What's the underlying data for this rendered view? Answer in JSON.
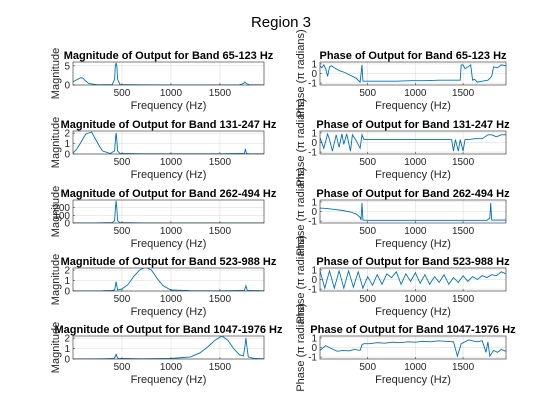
{
  "figure": {
    "suptitle": "Region 3",
    "background": "#ffffff",
    "series_color": "#0072bd",
    "grid_color": "#d9d9d9",
    "axis_color": "#262626"
  },
  "chart_data": [
    {
      "type": "line",
      "band": "65-123 Hz",
      "kind": "magnitude",
      "title": "Magnitude of Output for Band 65-123 Hz",
      "xlabel": "Frequency (Hz)",
      "ylabel": "Magnitude",
      "xlim": [
        0,
        1950
      ],
      "ylim": [
        0,
        6
      ],
      "xticks": [
        500,
        1000,
        1500
      ],
      "xticklabels": [
        "500",
        "1000",
        "1500"
      ],
      "yticks": [
        0,
        5
      ],
      "yticklabels": [
        "0",
        "5"
      ],
      "grid": true,
      "x": [
        0,
        40,
        80,
        100,
        123,
        160,
        250,
        400,
        425,
        432,
        440,
        448,
        455,
        480,
        700,
        1000,
        1300,
        1700,
        1740,
        1755,
        1770,
        1800,
        1950
      ],
      "y": [
        0.8,
        1.4,
        1.9,
        1.8,
        1.2,
        0.4,
        0.05,
        0.1,
        1.5,
        4.8,
        5.8,
        4.8,
        1.5,
        0.1,
        0.05,
        0.02,
        0.02,
        0.05,
        0.4,
        0.8,
        0.4,
        0.05,
        0.02
      ]
    },
    {
      "type": "line",
      "band": "65-123 Hz",
      "kind": "phase",
      "title": "Phase of Output for Band 65-123 Hz",
      "xlabel": "Frequency (Hz)",
      "ylabel": "Phase (π radians)",
      "xlim": [
        0,
        1950
      ],
      "ylim": [
        -1.2,
        1.2
      ],
      "xticks": [
        500,
        1000,
        1500
      ],
      "xticklabels": [
        "500",
        "1000",
        "1500"
      ],
      "yticks": [
        -1,
        0,
        1
      ],
      "yticklabels": [
        "-1",
        "0",
        "1"
      ],
      "grid": true,
      "x": [
        0,
        20,
        40,
        60,
        80,
        100,
        120,
        150,
        200,
        260,
        320,
        380,
        420,
        440,
        450,
        500,
        650,
        800,
        950,
        1100,
        1250,
        1400,
        1470,
        1480,
        1500,
        1520,
        1580,
        1600,
        1620,
        1650,
        1700,
        1760,
        1800,
        1820,
        1860,
        1900,
        1950
      ],
      "y": [
        0.8,
        0.6,
        0.9,
        0.5,
        -0.3,
        0.7,
        0.8,
        0.6,
        0.3,
        0.1,
        -0.2,
        -0.5,
        -0.9,
        0.9,
        -0.8,
        -0.8,
        -0.8,
        -0.8,
        -0.75,
        -0.75,
        -0.7,
        -0.7,
        -0.7,
        0.9,
        0.9,
        0.5,
        0.9,
        -0.7,
        -0.6,
        -0.9,
        -0.8,
        -0.7,
        -0.3,
        0.7,
        0.6,
        0.9,
        0.8
      ]
    },
    {
      "type": "line",
      "band": "131-247 Hz",
      "kind": "magnitude",
      "title": "Magnitude of Output for Band 131-247 Hz",
      "xlabel": "Frequency (Hz)",
      "ylabel": "Magnitude",
      "xlim": [
        0,
        1950
      ],
      "ylim": [
        0,
        2.2
      ],
      "xticks": [
        500,
        1000,
        1500
      ],
      "xticklabels": [
        "500",
        "1000",
        "1500"
      ],
      "yticks": [
        0,
        1,
        2
      ],
      "yticklabels": [
        "0",
        "1",
        "2"
      ],
      "grid": true,
      "x": [
        0,
        40,
        80,
        130,
        190,
        220,
        260,
        300,
        380,
        425,
        435,
        440,
        445,
        455,
        480,
        700,
        1000,
        1500,
        1750,
        1760,
        1770,
        1800,
        1950
      ],
      "y": [
        0.1,
        0.5,
        1.1,
        1.9,
        2.1,
        1.6,
        0.9,
        0.3,
        0.05,
        0.3,
        1.6,
        2.0,
        1.6,
        0.3,
        0.05,
        0.02,
        0.02,
        0.02,
        0.05,
        0.5,
        0.05,
        0.02,
        0.02
      ]
    },
    {
      "type": "line",
      "band": "131-247 Hz",
      "kind": "phase",
      "title": "Phase of Output for Band 131-247 Hz",
      "xlabel": "Frequency (Hz)",
      "ylabel": "Phase (π radians)",
      "xlim": [
        0,
        1950
      ],
      "ylim": [
        -1.2,
        1.2
      ],
      "xticks": [
        500,
        1000,
        1500
      ],
      "xticklabels": [
        "500",
        "1000",
        "1500"
      ],
      "yticks": [
        -1,
        0,
        1
      ],
      "yticklabels": [
        "-1",
        "0",
        "1"
      ],
      "grid": true,
      "x": [
        0,
        40,
        80,
        100,
        130,
        170,
        200,
        230,
        250,
        280,
        320,
        340,
        380,
        420,
        440,
        460,
        600,
        800,
        1000,
        1200,
        1380,
        1400,
        1420,
        1450,
        1470,
        1500,
        1520,
        1560,
        1620,
        1700,
        1760,
        1800,
        1850,
        1900,
        1950
      ],
      "y": [
        0.5,
        -0.6,
        0.9,
        0.3,
        -0.9,
        0.8,
        -0.5,
        0.9,
        -0.2,
        0.9,
        -0.9,
        0.8,
        0.2,
        -0.6,
        0.8,
        0.3,
        0.3,
        0.3,
        0.3,
        0.3,
        0.3,
        -0.9,
        0.3,
        -0.9,
        0.3,
        -0.9,
        0.3,
        0.3,
        0.4,
        0.4,
        0.8,
        0.8,
        0.6,
        0.8,
        0.8
      ]
    },
    {
      "type": "line",
      "band": "262-494 Hz",
      "kind": "magnitude",
      "title": "Magnitude of Output for Band 262-494 Hz",
      "xlabel": "Frequency (Hz)",
      "ylabel": "Magnitude",
      "xlim": [
        0,
        1950
      ],
      "ylim": [
        0,
        300
      ],
      "xticks": [
        500,
        1000,
        1500
      ],
      "xticklabels": [
        "500",
        "1000",
        "1500"
      ],
      "yticks": [
        0,
        100,
        200
      ],
      "yticklabels": [
        "0",
        "100",
        "200"
      ],
      "grid": true,
      "x": [
        0,
        200,
        300,
        400,
        425,
        432,
        440,
        448,
        455,
        480,
        700,
        1000,
        1500,
        1950
      ],
      "y": [
        0,
        0,
        2,
        5,
        30,
        180,
        290,
        180,
        30,
        5,
        1,
        0,
        0,
        0
      ]
    },
    {
      "type": "line",
      "band": "262-494 Hz",
      "kind": "phase",
      "title": "Phase of Output for Band 262-494 Hz",
      "xlabel": "Frequency (Hz)",
      "ylabel": "Phase (π radians)",
      "xlim": [
        0,
        1950
      ],
      "ylim": [
        -1.2,
        1.2
      ],
      "xticks": [
        500,
        1000,
        1500
      ],
      "xticklabels": [
        "500",
        "1000",
        "1500"
      ],
      "yticks": [
        -1,
        0,
        1
      ],
      "yticklabels": [
        "-1",
        "0",
        "1"
      ],
      "grid": true,
      "x": [
        0,
        80,
        160,
        240,
        320,
        380,
        420,
        430,
        440,
        450,
        500,
        700,
        1000,
        1300,
        1600,
        1750,
        1780,
        1790,
        1800,
        1850,
        1950
      ],
      "y": [
        0.35,
        0.3,
        0.2,
        0.1,
        -0.05,
        -0.25,
        -0.6,
        -0.9,
        0.9,
        -0.9,
        -0.92,
        -0.92,
        -0.92,
        -0.92,
        -0.92,
        -0.92,
        -0.7,
        0.9,
        -0.9,
        -0.9,
        -0.9
      ]
    },
    {
      "type": "line",
      "band": "523-988 Hz",
      "kind": "magnitude",
      "title": "Magnitude of Output for Band 523-988 Hz",
      "xlabel": "Frequency (Hz)",
      "ylabel": "Magnitude",
      "xlim": [
        0,
        1950
      ],
      "ylim": [
        0,
        2.2
      ],
      "xticks": [
        500,
        1000,
        1500
      ],
      "xticklabels": [
        "500",
        "1000",
        "1500"
      ],
      "yticks": [
        0,
        1,
        2
      ],
      "yticklabels": [
        "0",
        "1",
        "2"
      ],
      "grid": true,
      "x": [
        0,
        300,
        400,
        425,
        435,
        440,
        445,
        455,
        500,
        560,
        620,
        680,
        740,
        800,
        860,
        920,
        1000,
        1200,
        1500,
        1750,
        1765,
        1780,
        1950
      ],
      "y": [
        0,
        0.02,
        0.05,
        0.1,
        0.6,
        0.9,
        0.6,
        0.1,
        0.2,
        0.6,
        1.4,
        2.0,
        2.3,
        2.0,
        1.2,
        0.5,
        0.1,
        0.03,
        0.02,
        0.05,
        0.5,
        0.05,
        0.02
      ]
    },
    {
      "type": "line",
      "band": "523-988 Hz",
      "kind": "phase",
      "title": "Phase of Output for Band 523-988 Hz",
      "xlabel": "Frequency (Hz)",
      "ylabel": "Phase (π radians)",
      "xlim": [
        0,
        1950
      ],
      "ylim": [
        -1.2,
        1.2
      ],
      "xticks": [
        500,
        1000,
        1500
      ],
      "xticklabels": [
        "500",
        "1000",
        "1500"
      ],
      "yticks": [
        -1,
        0,
        1
      ],
      "yticklabels": [
        "-1",
        "0",
        "1"
      ],
      "grid": true,
      "x": [
        0,
        50,
        100,
        150,
        200,
        250,
        300,
        350,
        400,
        450,
        500,
        550,
        600,
        650,
        700,
        750,
        800,
        850,
        900,
        950,
        1000,
        1050,
        1100,
        1150,
        1200,
        1250,
        1300,
        1350,
        1400,
        1450,
        1500,
        1550,
        1600,
        1650,
        1700,
        1750,
        1800,
        1850,
        1900,
        1950
      ],
      "y": [
        0.9,
        -0.9,
        0.9,
        -0.9,
        0.9,
        -0.9,
        0.9,
        -0.8,
        0.8,
        -0.9,
        0.3,
        -0.6,
        0.5,
        -0.5,
        0.6,
        0.2,
        0.8,
        -0.5,
        0.6,
        -0.2,
        0.7,
        -0.4,
        0.5,
        -0.5,
        0.3,
        -0.3,
        0.5,
        -0.5,
        0.2,
        -0.3,
        0.4,
        -0.2,
        0.3,
        0.0,
        0.4,
        0.2,
        0.5,
        0.4,
        0.8,
        0.6
      ]
    },
    {
      "type": "line",
      "band": "1047-1976 Hz",
      "kind": "magnitude",
      "title": "Magnitude of Output for Band 1047-1976 Hz",
      "xlabel": "Frequency (Hz)",
      "ylabel": "Magnitude",
      "xlim": [
        0,
        1950
      ],
      "ylim": [
        0,
        2.2
      ],
      "xticks": [
        500,
        1000,
        1500
      ],
      "xticklabels": [
        "500",
        "1000",
        "1500"
      ],
      "yticks": [
        0,
        1,
        2
      ],
      "yticklabels": [
        "0",
        "1",
        "2"
      ],
      "grid": true,
      "x": [
        0,
        300,
        420,
        435,
        440,
        445,
        460,
        700,
        1000,
        1200,
        1300,
        1380,
        1450,
        1520,
        1580,
        1640,
        1700,
        1740,
        1755,
        1765,
        1775,
        1790,
        1850,
        1950
      ],
      "y": [
        0,
        0.02,
        0.05,
        0.3,
        0.5,
        0.3,
        0.05,
        0.02,
        0.05,
        0.2,
        0.6,
        1.2,
        1.8,
        2.2,
        1.8,
        1.0,
        0.4,
        0.3,
        1.2,
        2.0,
        1.2,
        0.2,
        0.05,
        0.02
      ]
    },
    {
      "type": "line",
      "band": "1047-1976 Hz",
      "kind": "phase",
      "title": "Phase of Output for Band 1047-1976 Hz",
      "xlabel": "Frequency (Hz)",
      "ylabel": "Phase (π radians)",
      "xlim": [
        0,
        1950
      ],
      "ylim": [
        -1.2,
        1.2
      ],
      "xticks": [
        500,
        1000,
        1500
      ],
      "xticklabels": [
        "500",
        "1000",
        "1500"
      ],
      "yticks": [
        -1,
        0,
        1
      ],
      "yticklabels": [
        "-1",
        "0",
        "1"
      ],
      "grid": true,
      "x": [
        0,
        60,
        120,
        180,
        240,
        300,
        360,
        420,
        440,
        460,
        520,
        600,
        680,
        760,
        840,
        920,
        1000,
        1080,
        1160,
        1240,
        1320,
        1400,
        1440,
        1480,
        1560,
        1640,
        1700,
        1740,
        1760,
        1780,
        1820,
        1860,
        1900,
        1950
      ],
      "y": [
        -0.3,
        0.2,
        -0.1,
        -0.4,
        -0.3,
        -0.35,
        -0.2,
        -0.3,
        0.3,
        0.4,
        0.4,
        0.5,
        0.45,
        0.55,
        0.5,
        0.6,
        0.55,
        0.65,
        0.6,
        0.7,
        0.65,
        0.6,
        -0.9,
        0.4,
        0.8,
        0.6,
        0.7,
        -0.5,
        0.6,
        -0.9,
        -0.3,
        -0.5,
        -0.2,
        -0.4
      ]
    }
  ]
}
